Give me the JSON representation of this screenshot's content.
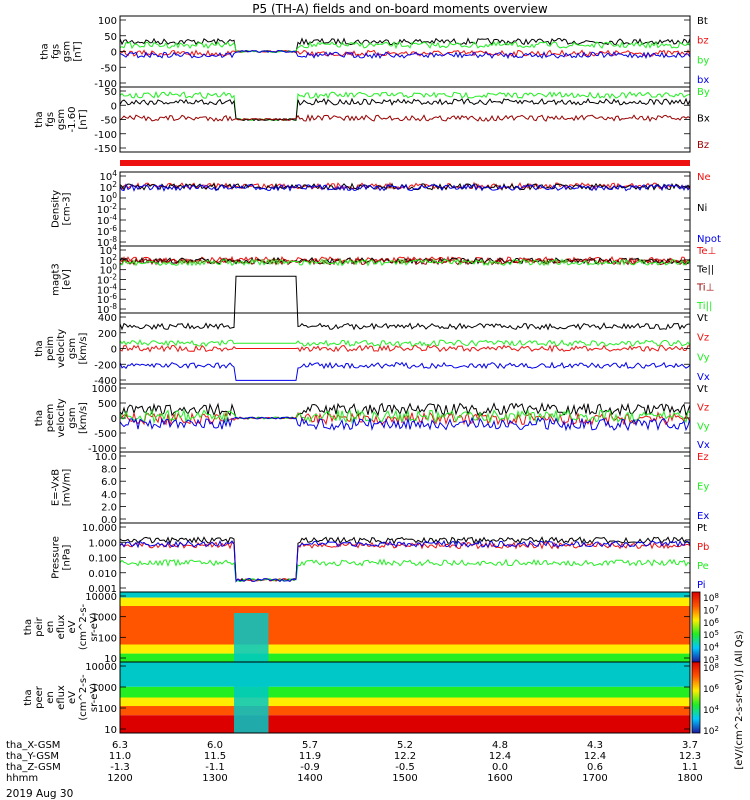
{
  "title": "P5 (TH-A) fields and on-board moments overview",
  "date": "2019 Aug 30",
  "colorbar_label": "[eV/(cm^2-s-sr-eV)] (All Qs)",
  "colors": {
    "black": "#000000",
    "red": "#ee1111",
    "green": "#22ee22",
    "blue": "#0000ee",
    "darkred": "#990000"
  },
  "chart_data": [
    {
      "type": "line",
      "panel": "fgs",
      "ylabel": [
        "tha",
        "fgs",
        "gsm",
        "[nT]"
      ],
      "yticks": [
        "100",
        "50",
        "0",
        "-50",
        "-100"
      ],
      "ylim": [
        -100,
        100
      ],
      "series": [
        {
          "name": "Bt",
          "color": "black",
          "level": 28
        },
        {
          "name": "bz",
          "color": "red",
          "level": -5
        },
        {
          "name": "by",
          "color": "green",
          "level": 18
        },
        {
          "name": "bx",
          "color": "blue",
          "level": -10
        }
      ]
    },
    {
      "type": "line",
      "panel": "fgs_gse",
      "ylabel": [
        "tha",
        "fgs",
        "gsm",
        "-1.60",
        "[nT]"
      ],
      "yticks": [
        "50",
        "0",
        "-50",
        "-100",
        "-150"
      ],
      "ylim": [
        -180,
        60
      ],
      "series": [
        {
          "name": "By",
          "color": "green",
          "level": 30
        },
        {
          "name": "Bx",
          "color": "black",
          "level": 5
        },
        {
          "name": "Bz",
          "color": "darkred",
          "level": -55
        }
      ]
    },
    {
      "type": "line",
      "panel": "density",
      "ylabel": [
        "Density",
        "[cm-3]"
      ],
      "yticks": [
        "10^4",
        "10^2",
        "10^0",
        "10^-2",
        "10^-4",
        "10^-6",
        "10^-8"
      ],
      "series": [
        {
          "name": "Ne",
          "color": "red"
        },
        {
          "name": "Ni",
          "color": "black"
        },
        {
          "name": "Npot",
          "color": "blue"
        }
      ]
    },
    {
      "type": "line",
      "panel": "temperature",
      "ylabel": [
        "magt3",
        "[eV]"
      ],
      "yticks": [
        "10^4",
        "10^2",
        "10^0",
        "10^-2",
        "10^-4",
        "10^-6",
        "10^-8"
      ],
      "series": [
        {
          "name": "Te⊥",
          "color": "red"
        },
        {
          "name": "Te||",
          "color": "black"
        },
        {
          "name": "Ti⊥",
          "color": "darkred"
        },
        {
          "name": "Ti||",
          "color": "green"
        }
      ]
    },
    {
      "type": "line",
      "panel": "peim_velocity",
      "ylabel": [
        "tha",
        "peim",
        "velocity",
        "gsm",
        "[km/s]"
      ],
      "yticks": [
        "400",
        "200",
        "0",
        "-200",
        "-400"
      ],
      "ylim": [
        -400,
        400
      ],
      "series": [
        {
          "name": "Vt",
          "color": "black",
          "level": 250
        },
        {
          "name": "Vz",
          "color": "red",
          "level": 0
        },
        {
          "name": "Vy",
          "color": "green",
          "level": 60
        },
        {
          "name": "Vx",
          "color": "blue",
          "level": -190
        }
      ]
    },
    {
      "type": "line",
      "panel": "peem_velocity",
      "ylabel": [
        "tha",
        "peem",
        "velocity",
        "gsm",
        "[km/s]"
      ],
      "yticks": [
        "1000",
        "500",
        "0",
        "-500",
        "-1000"
      ],
      "ylim": [
        -1000,
        1000
      ],
      "series": [
        {
          "name": "Vt",
          "color": "black",
          "level": 250
        },
        {
          "name": "Vz",
          "color": "red",
          "level": -20
        },
        {
          "name": "Vy",
          "color": "green",
          "level": 50
        },
        {
          "name": "Vx",
          "color": "blue",
          "level": -180
        }
      ]
    },
    {
      "type": "line",
      "panel": "efield",
      "ylabel": [
        "E=-VxB",
        "[mV/m]"
      ],
      "yticks": [
        "10.0",
        "8.0",
        "6.0",
        "4.0",
        "2.0",
        "0.0"
      ],
      "ylim": [
        0,
        10
      ],
      "series": [
        {
          "name": "Ez",
          "color": "red"
        },
        {
          "name": "Ey",
          "color": "green"
        },
        {
          "name": "Ex",
          "color": "blue"
        }
      ]
    },
    {
      "type": "line",
      "panel": "pressure",
      "ylabel": [
        "Pressure",
        "[nPa]"
      ],
      "yticks": [
        "10.000",
        "1.000",
        "0.100",
        "0.010",
        "0.001"
      ],
      "log": true,
      "series": [
        {
          "name": "Pt",
          "color": "black",
          "level": 1.0
        },
        {
          "name": "Pb",
          "color": "red",
          "level": 0.5
        },
        {
          "name": "Pe",
          "color": "green",
          "level": 0.05
        },
        {
          "name": "Pi",
          "color": "blue",
          "level": 0.6
        }
      ]
    },
    {
      "type": "heatmap",
      "panel": "peir_spectrogram",
      "ylabel": [
        "tha",
        "peir",
        "en",
        "eflux",
        "eV",
        "(cm^2-s-",
        "sr-eV)"
      ],
      "yticks": [
        "10000",
        "1000",
        "100",
        "10"
      ]
    },
    {
      "type": "heatmap",
      "panel": "peer_spectrogram",
      "ylabel": [
        "tha",
        "peer",
        "en",
        "eflux",
        "eV",
        "(cm^2-s-",
        "sr-eV)"
      ],
      "yticks": [
        "10000",
        "1000",
        "100",
        "10"
      ]
    }
  ],
  "colorbar_ticks": [
    "10^8",
    "10^7",
    "10^6",
    "10^5",
    "10^4",
    "10^3"
  ],
  "colorbar2_ticks": [
    "10^8",
    "10^6",
    "10^4",
    "10^2"
  ],
  "x_axis": {
    "labels": [
      "tha_X-GSM",
      "tha_Y-GSM",
      "tha_Z-GSM",
      "hhmm"
    ],
    "rows": [
      [
        "6.3",
        "6.0",
        "5.7",
        "5.2",
        "4.8",
        "4.3",
        "3.7"
      ],
      [
        "11.0",
        "11.5",
        "11.9",
        "12.2",
        "12.4",
        "12.4",
        "12.3"
      ],
      [
        "-1.3",
        "-1.1",
        "-0.9",
        "-0.5",
        "0.0",
        "0.6",
        "1.1"
      ],
      [
        "1200",
        "1300",
        "1400",
        "1500",
        "1600",
        "1700",
        "1800"
      ]
    ]
  }
}
